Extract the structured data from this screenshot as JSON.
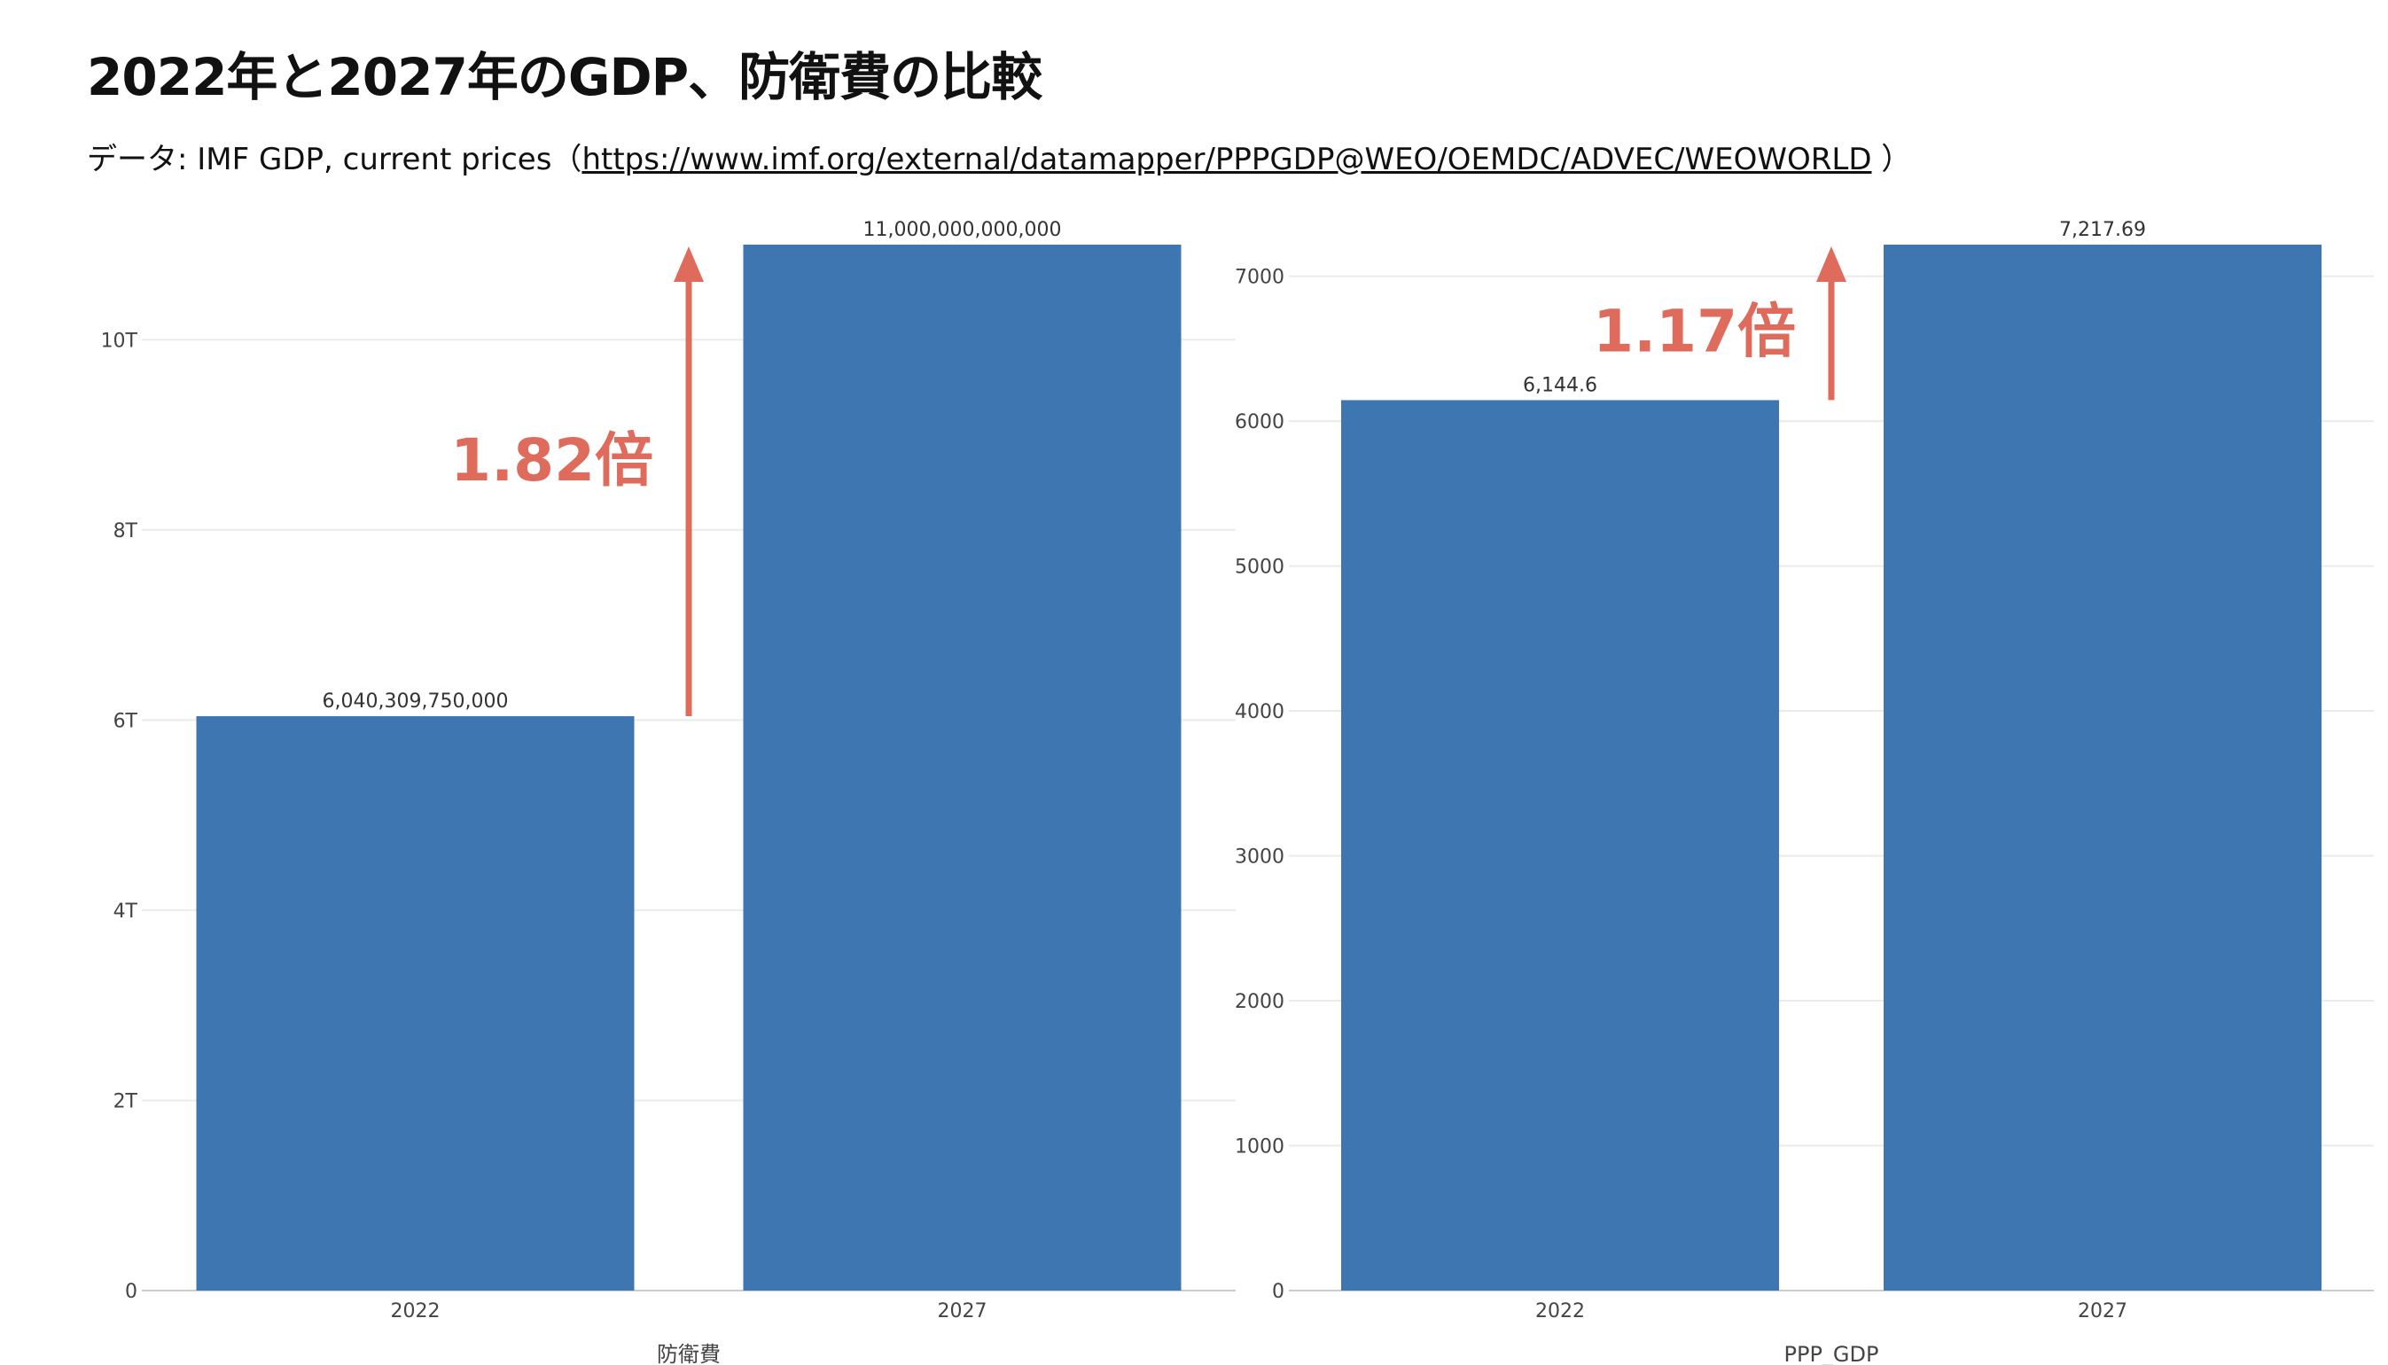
{
  "header": {
    "title": "2022年と2027年のGDP、防衛費の比較",
    "source_prefix": "データ: IMF GDP, current prices（",
    "source_link": "https://www.imf.org/external/datamapper/PPPGDP@WEO/OEMDC/ADVEC/WEOWORLD",
    "source_suffix": " ）"
  },
  "colors": {
    "bar": "#3d76b0",
    "annotation": "#de6b5b",
    "grid": "#ebebeb",
    "axis": "#cccccc",
    "tick_text": "#444444"
  },
  "chart_data": [
    {
      "type": "bar",
      "categories": [
        "2022",
        "2027"
      ],
      "values": [
        6040309750000,
        11000000000000
      ],
      "data_labels": [
        "6,040,309,750,000",
        "11,000,000,000,000"
      ],
      "xlabel": "防衛費",
      "ylabel": "",
      "ylim": [
        0,
        11000000000000
      ],
      "yticks": [
        0,
        2000000000000,
        4000000000000,
        6000000000000,
        8000000000000,
        10000000000000
      ],
      "ytick_labels": [
        "0",
        "2T",
        "4T",
        "6T",
        "8T",
        "10T"
      ],
      "grid": true,
      "annotation": {
        "text": "1.82倍",
        "arrow": "up",
        "from": 6040309750000,
        "to": 11000000000000
      }
    },
    {
      "type": "bar",
      "categories": [
        "2022",
        "2027"
      ],
      "values": [
        6144.6,
        7217.69
      ],
      "data_labels": [
        "6,144.6",
        "7,217.69"
      ],
      "xlabel": "PPP_GDP",
      "ylabel": "",
      "ylim": [
        0,
        7217.69
      ],
      "yticks": [
        0,
        1000,
        2000,
        3000,
        4000,
        5000,
        6000,
        7000
      ],
      "ytick_labels": [
        "0",
        "1000",
        "2000",
        "3000",
        "4000",
        "5000",
        "6000",
        "7000"
      ],
      "grid": true,
      "annotation": {
        "text": "1.17倍",
        "arrow": "up",
        "from": 6144.6,
        "to": 7217.69
      }
    }
  ]
}
